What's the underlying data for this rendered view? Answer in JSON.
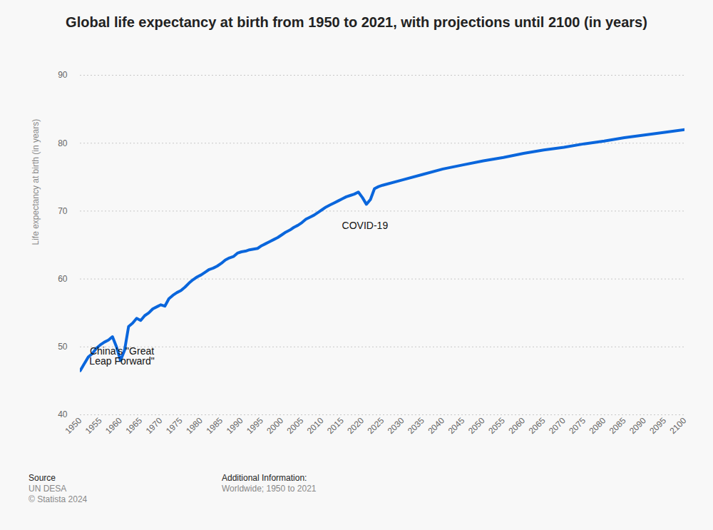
{
  "chart_data": {
    "type": "line",
    "title": "Global life expectancy at birth from 1950 to 2021, with projections until 2100 (in years)",
    "y_label": "Life expectancy at birth (in years)",
    "x": [
      1950,
      1951,
      1952,
      1953,
      1954,
      1955,
      1956,
      1957,
      1958,
      1959,
      1960,
      1961,
      1962,
      1963,
      1964,
      1965,
      1966,
      1967,
      1968,
      1969,
      1970,
      1971,
      1972,
      1973,
      1974,
      1975,
      1976,
      1977,
      1978,
      1979,
      1980,
      1981,
      1982,
      1983,
      1984,
      1985,
      1986,
      1987,
      1988,
      1989,
      1990,
      1991,
      1992,
      1993,
      1994,
      1995,
      1996,
      1997,
      1998,
      1999,
      2000,
      2001,
      2002,
      2003,
      2004,
      2005,
      2006,
      2007,
      2008,
      2009,
      2010,
      2011,
      2012,
      2013,
      2014,
      2015,
      2016,
      2017,
      2018,
      2019,
      2020,
      2021,
      2022,
      2023,
      2024,
      2025,
      2030,
      2035,
      2040,
      2045,
      2050,
      2055,
      2060,
      2065,
      2070,
      2075,
      2080,
      2085,
      2090,
      2095,
      2100
    ],
    "values": [
      46.5,
      47.5,
      48.5,
      49.0,
      49.8,
      50.3,
      50.7,
      51.0,
      51.5,
      50.0,
      48.0,
      49.5,
      53.0,
      53.5,
      54.2,
      53.9,
      54.6,
      55.0,
      55.6,
      55.9,
      56.2,
      56.0,
      57.1,
      57.6,
      58.0,
      58.3,
      58.8,
      59.4,
      59.9,
      60.3,
      60.6,
      61.0,
      61.4,
      61.6,
      61.9,
      62.3,
      62.8,
      63.1,
      63.3,
      63.8,
      64.0,
      64.1,
      64.3,
      64.4,
      64.5,
      64.9,
      65.2,
      65.5,
      65.8,
      66.1,
      66.5,
      66.9,
      67.2,
      67.6,
      67.9,
      68.3,
      68.8,
      69.1,
      69.4,
      69.8,
      70.2,
      70.6,
      70.9,
      71.2,
      71.5,
      71.8,
      72.1,
      72.3,
      72.5,
      72.8,
      72.0,
      71.0,
      71.7,
      73.3,
      73.6,
      73.8,
      74.6,
      75.4,
      76.2,
      76.8,
      77.4,
      77.9,
      78.5,
      79.0,
      79.4,
      79.9,
      80.3,
      80.8,
      81.2,
      81.6,
      82.0
    ],
    "color": "#0a66dc",
    "xlim": [
      1950,
      2100
    ],
    "xticks": [
      1950,
      1955,
      1960,
      1965,
      1970,
      1975,
      1980,
      1985,
      1990,
      1995,
      2000,
      2005,
      2010,
      2015,
      2020,
      2025,
      2030,
      2035,
      2040,
      2045,
      2050,
      2055,
      2060,
      2065,
      2070,
      2075,
      2080,
      2085,
      2090,
      2095,
      2100
    ],
    "ylim": [
      40,
      90
    ],
    "yticks": [
      40,
      50,
      60,
      70,
      80,
      90
    ],
    "grid": true,
    "annotations": [
      {
        "text": "China's \"Great Leap Forward\"",
        "x": 1960,
        "y": 48.0
      },
      {
        "text": "COVID-19",
        "x": 2021,
        "y": 71.0
      }
    ],
    "source_label": "Source",
    "source": "UN DESA",
    "copyright": "© Statista 2024",
    "info_label": "Additional Information:",
    "info": "Worldwide; 1950 to 2021"
  }
}
